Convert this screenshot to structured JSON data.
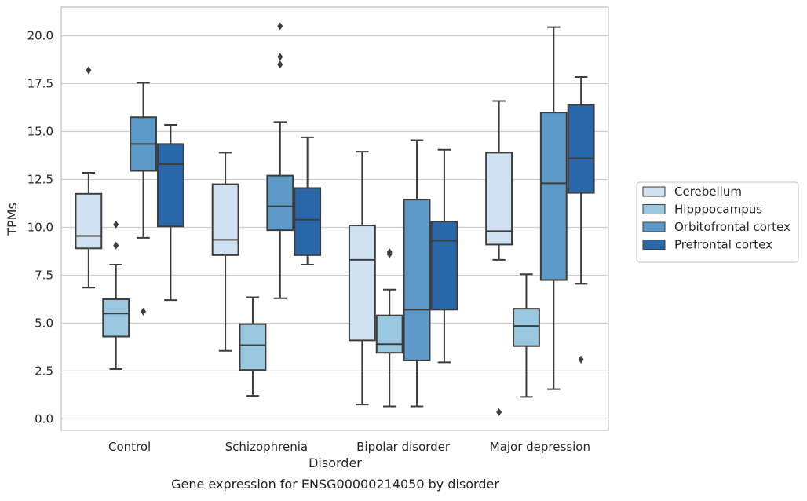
{
  "chart_data": {
    "type": "boxplot",
    "title": "",
    "caption": "Gene expression for ENSG00000214050 by disorder",
    "xlabel": "Disorder",
    "ylabel": "TPMs",
    "ylim": [
      -0.6,
      21.5
    ],
    "yticks": [
      "0.0",
      "2.5",
      "5.0",
      "7.5",
      "10.0",
      "12.5",
      "15.0",
      "17.5",
      "20.0"
    ],
    "grid": "horizontal",
    "legend_position": "right",
    "categories": [
      "Control",
      "Schizophrenia",
      "Bipolar disorder",
      "Major depression"
    ],
    "series": [
      {
        "name": "Cerebellum",
        "color": "#d0e1f2",
        "boxes": [
          {
            "whislo": 6.85,
            "q1": 8.9,
            "med": 9.55,
            "q3": 11.75,
            "whishi": 12.85,
            "fliers": [
              18.2
            ]
          },
          {
            "whislo": 3.55,
            "q1": 8.55,
            "med": 9.35,
            "q3": 12.25,
            "whishi": 13.9,
            "fliers": []
          },
          {
            "whislo": 0.75,
            "q1": 4.1,
            "med": 8.3,
            "q3": 10.1,
            "whishi": 13.95,
            "fliers": []
          },
          {
            "whislo": 8.3,
            "q1": 9.1,
            "med": 9.8,
            "q3": 13.9,
            "whishi": 16.6,
            "fliers": [
              0.35
            ]
          }
        ]
      },
      {
        "name": "Hipppocampus",
        "color": "#9ac8e0",
        "boxes": [
          {
            "whislo": 2.6,
            "q1": 4.3,
            "med": 5.5,
            "q3": 6.25,
            "whishi": 8.05,
            "fliers": [
              10.15,
              9.05
            ]
          },
          {
            "whislo": 1.2,
            "q1": 2.55,
            "med": 3.85,
            "q3": 4.95,
            "whishi": 6.35,
            "fliers": []
          },
          {
            "whislo": 0.65,
            "q1": 3.45,
            "med": 3.9,
            "q3": 5.4,
            "whishi": 6.75,
            "fliers": [
              8.6,
              8.7
            ]
          },
          {
            "whislo": 1.15,
            "q1": 3.8,
            "med": 4.85,
            "q3": 5.75,
            "whishi": 7.55,
            "fliers": []
          }
        ]
      },
      {
        "name": "Orbitofrontal cortex",
        "color": "#5e9ac7",
        "boxes": [
          {
            "whislo": 9.45,
            "q1": 12.95,
            "med": 14.35,
            "q3": 15.75,
            "whishi": 17.55,
            "fliers": [
              5.6
            ]
          },
          {
            "whislo": 6.3,
            "q1": 9.85,
            "med": 11.1,
            "q3": 12.7,
            "whishi": 15.5,
            "fliers": [
              18.5,
              18.9,
              20.5
            ]
          },
          {
            "whislo": 0.65,
            "q1": 3.05,
            "med": 5.7,
            "q3": 11.45,
            "whishi": 14.55,
            "fliers": []
          },
          {
            "whislo": 1.55,
            "q1": 7.25,
            "med": 12.3,
            "q3": 16.0,
            "whishi": 20.45,
            "fliers": []
          }
        ]
      },
      {
        "name": "Prefrontal cortex",
        "color": "#2a67a8",
        "boxes": [
          {
            "whislo": 6.2,
            "q1": 10.05,
            "med": 13.3,
            "q3": 14.35,
            "whishi": 15.35,
            "fliers": []
          },
          {
            "whislo": 8.05,
            "q1": 8.55,
            "med": 10.4,
            "q3": 12.05,
            "whishi": 14.7,
            "fliers": []
          },
          {
            "whislo": 2.95,
            "q1": 5.7,
            "med": 9.3,
            "q3": 10.3,
            "whishi": 14.05,
            "fliers": []
          },
          {
            "whislo": 7.05,
            "q1": 11.8,
            "med": 13.6,
            "q3": 16.4,
            "whishi": 17.85,
            "fliers": [
              3.1
            ]
          }
        ]
      }
    ]
  }
}
